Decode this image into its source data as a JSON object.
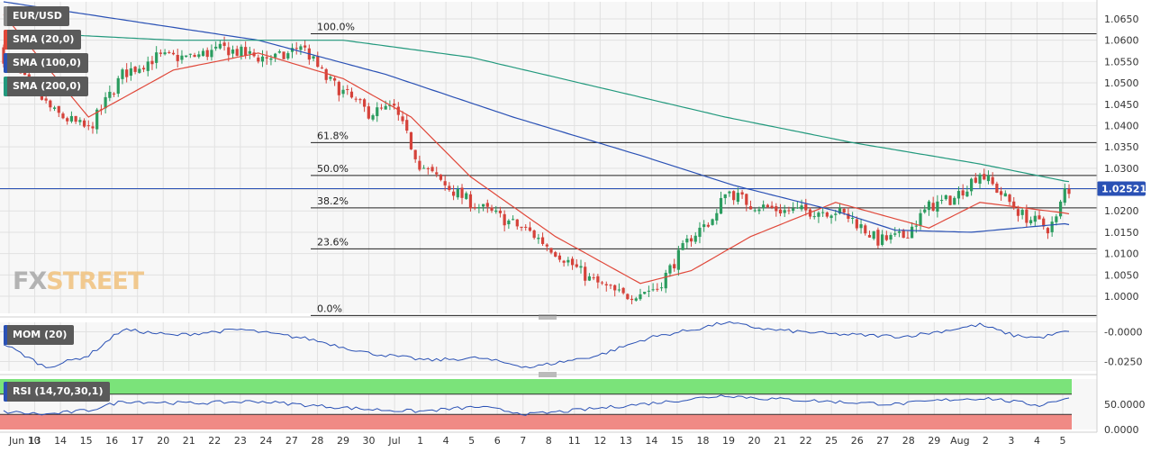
{
  "chart_data": [
    {
      "type": "candlestick",
      "symbol": "EUR/USD",
      "ylim": [
        0.996,
        1.069
      ],
      "y_ticks": [
        "1.0650",
        "1.0600",
        "1.0550",
        "1.0500",
        "1.0450",
        "1.0400",
        "1.0350",
        "1.0300",
        "1.0250",
        "1.0200",
        "1.0150",
        "1.0100",
        "1.0050",
        "1.0000"
      ],
      "y_tick_values": [
        1.065,
        1.06,
        1.055,
        1.05,
        1.045,
        1.04,
        1.035,
        1.03,
        1.025,
        1.02,
        1.015,
        1.01,
        1.005,
        1.0
      ],
      "x_labels": [
        "Jun 10",
        "13",
        "14",
        "15",
        "16",
        "17",
        "20",
        "21",
        "22",
        "23",
        "24",
        "27",
        "28",
        "29",
        "30",
        "Jul",
        "1",
        "4",
        "5",
        "6",
        "7",
        "8",
        "11",
        "12",
        "13",
        "14",
        "15",
        "18",
        "19",
        "20",
        "21",
        "22",
        "25",
        "26",
        "27",
        "28",
        "29",
        "Aug",
        "2",
        "3",
        "4",
        "5"
      ],
      "last_price": 1.02521,
      "last_price_label": "1.02521",
      "fibonacci": [
        {
          "label": "100.0%",
          "value": 1.0615
        },
        {
          "label": "61.8%",
          "value": 1.036
        },
        {
          "label": "50.0%",
          "value": 1.0283
        },
        {
          "label": "38.2%",
          "value": 1.0207
        },
        {
          "label": "23.6%",
          "value": 1.0111
        },
        {
          "label": "0.0%",
          "value": 0.9955
        }
      ],
      "close_anchors": [
        [
          0,
          1.056
        ],
        [
          12,
          1.043
        ],
        [
          20,
          1.039
        ],
        [
          28,
          1.052
        ],
        [
          36,
          1.056
        ],
        [
          44,
          1.056
        ],
        [
          52,
          1.058
        ],
        [
          60,
          1.056
        ],
        [
          66,
          1.056
        ],
        [
          70,
          1.059
        ],
        [
          76,
          1.051
        ],
        [
          86,
          1.043
        ],
        [
          92,
          1.044
        ],
        [
          98,
          1.031
        ],
        [
          104,
          1.026
        ],
        [
          110,
          1.022
        ],
        [
          118,
          1.018
        ],
        [
          124,
          1.015
        ],
        [
          132,
          1.009
        ],
        [
          138,
          1.004
        ],
        [
          146,
          1.0
        ],
        [
          150,
          1.001
        ],
        [
          154,
          1.002
        ],
        [
          162,
          1.014
        ],
        [
          168,
          1.019
        ],
        [
          170,
          1.025
        ],
        [
          176,
          1.0215
        ],
        [
          184,
          1.02
        ],
        [
          196,
          1.02
        ],
        [
          200,
          1.018
        ],
        [
          206,
          1.013
        ],
        [
          212,
          1.014
        ],
        [
          218,
          1.021
        ],
        [
          224,
          1.023
        ],
        [
          228,
          1.027
        ],
        [
          230,
          1.029
        ],
        [
          236,
          1.023
        ],
        [
          240,
          1.019
        ],
        [
          246,
          1.016
        ],
        [
          248,
          1.018
        ],
        [
          250,
          1.025
        ]
      ],
      "series": [
        {
          "name": "SMA (20,0)",
          "color": "#e0483a",
          "anchors": [
            [
              0,
              1.066
            ],
            [
              20,
              1.042
            ],
            [
              40,
              1.053
            ],
            [
              60,
              1.057
            ],
            [
              80,
              1.051
            ],
            [
              96,
              1.042
            ],
            [
              110,
              1.028
            ],
            [
              130,
              1.014
            ],
            [
              150,
              1.003
            ],
            [
              162,
              1.006
            ],
            [
              176,
              1.014
            ],
            [
              196,
              1.022
            ],
            [
              218,
              1.016
            ],
            [
              230,
              1.022
            ],
            [
              250,
              1.0195
            ]
          ]
        },
        {
          "name": "SMA (100,0)",
          "color": "#2a51b5",
          "anchors": [
            [
              0,
              1.069
            ],
            [
              60,
              1.06
            ],
            [
              90,
              1.052
            ],
            [
              120,
              1.042
            ],
            [
              150,
              1.033
            ],
            [
              172,
              1.026
            ],
            [
              196,
              1.02
            ],
            [
              210,
              1.0155
            ],
            [
              228,
              1.015
            ],
            [
              250,
              1.017
            ]
          ]
        },
        {
          "name": "SMA (200,0)",
          "color": "#22997d",
          "anchors": [
            [
              0,
              1.062
            ],
            [
              40,
              1.06
            ],
            [
              80,
              1.06
            ],
            [
              110,
              1.056
            ],
            [
              140,
              1.049
            ],
            [
              170,
              1.042
            ],
            [
              200,
              1.036
            ],
            [
              230,
              1.031
            ],
            [
              250,
              1.027
            ]
          ]
        }
      ]
    },
    {
      "type": "line",
      "name": "MOM (20)",
      "ylim": [
        -0.033,
        0.008
      ],
      "y_ticks": [
        "-0.0000",
        "-0.0250"
      ],
      "y_tick_values": [
        0.0,
        -0.025
      ],
      "color": "#2a51b5",
      "anchors": [
        [
          0,
          -0.01
        ],
        [
          10,
          -0.03
        ],
        [
          20,
          -0.02
        ],
        [
          28,
          0.002
        ],
        [
          40,
          -0.003
        ],
        [
          56,
          0.002
        ],
        [
          72,
          -0.006
        ],
        [
          86,
          -0.018
        ],
        [
          100,
          -0.024
        ],
        [
          112,
          -0.022
        ],
        [
          124,
          -0.03
        ],
        [
          140,
          -0.02
        ],
        [
          152,
          -0.005
        ],
        [
          164,
          0.003
        ],
        [
          170,
          0.008
        ],
        [
          180,
          0.002
        ],
        [
          196,
          -0.002
        ],
        [
          212,
          -0.004
        ],
        [
          220,
          0.0
        ],
        [
          230,
          0.006
        ],
        [
          238,
          -0.003
        ],
        [
          244,
          -0.005
        ],
        [
          250,
          0.0
        ]
      ]
    },
    {
      "type": "line",
      "name": "RSI (14,70,30,1)",
      "ylim": [
        0,
        100
      ],
      "y_ticks": [
        "50.0000",
        "0.0000"
      ],
      "y_tick_values": [
        50,
        0
      ],
      "overbought": 70,
      "oversold": 30,
      "color": "#2a51b5",
      "anchors": [
        [
          0,
          35
        ],
        [
          10,
          30
        ],
        [
          20,
          38
        ],
        [
          28,
          56
        ],
        [
          44,
          52
        ],
        [
          60,
          56
        ],
        [
          72,
          48
        ],
        [
          86,
          40
        ],
        [
          98,
          36
        ],
        [
          112,
          45
        ],
        [
          124,
          30
        ],
        [
          140,
          42
        ],
        [
          156,
          55
        ],
        [
          170,
          68
        ],
        [
          178,
          62
        ],
        [
          196,
          55
        ],
        [
          210,
          50
        ],
        [
          224,
          60
        ],
        [
          232,
          62
        ],
        [
          244,
          48
        ],
        [
          250,
          62
        ]
      ]
    }
  ],
  "legend": {
    "symbol": "EUR/USD",
    "sma20": "SMA (20,0)",
    "sma100": "SMA (100,0)",
    "sma200": "SMA (200,0)",
    "mom": "MOM (20)",
    "rsi": "RSI (14,70,30,1)"
  },
  "colors": {
    "up": "#2b9c5f",
    "down": "#d5423a",
    "sma20": "#e0483a",
    "sma100": "#2a51b5",
    "sma200": "#22997d",
    "price_tag": "#2a51b5",
    "rsi_ob": "#7be37a",
    "rsi_os": "#f08a85"
  },
  "watermark": {
    "fx": "FX",
    "street": "STREET"
  }
}
